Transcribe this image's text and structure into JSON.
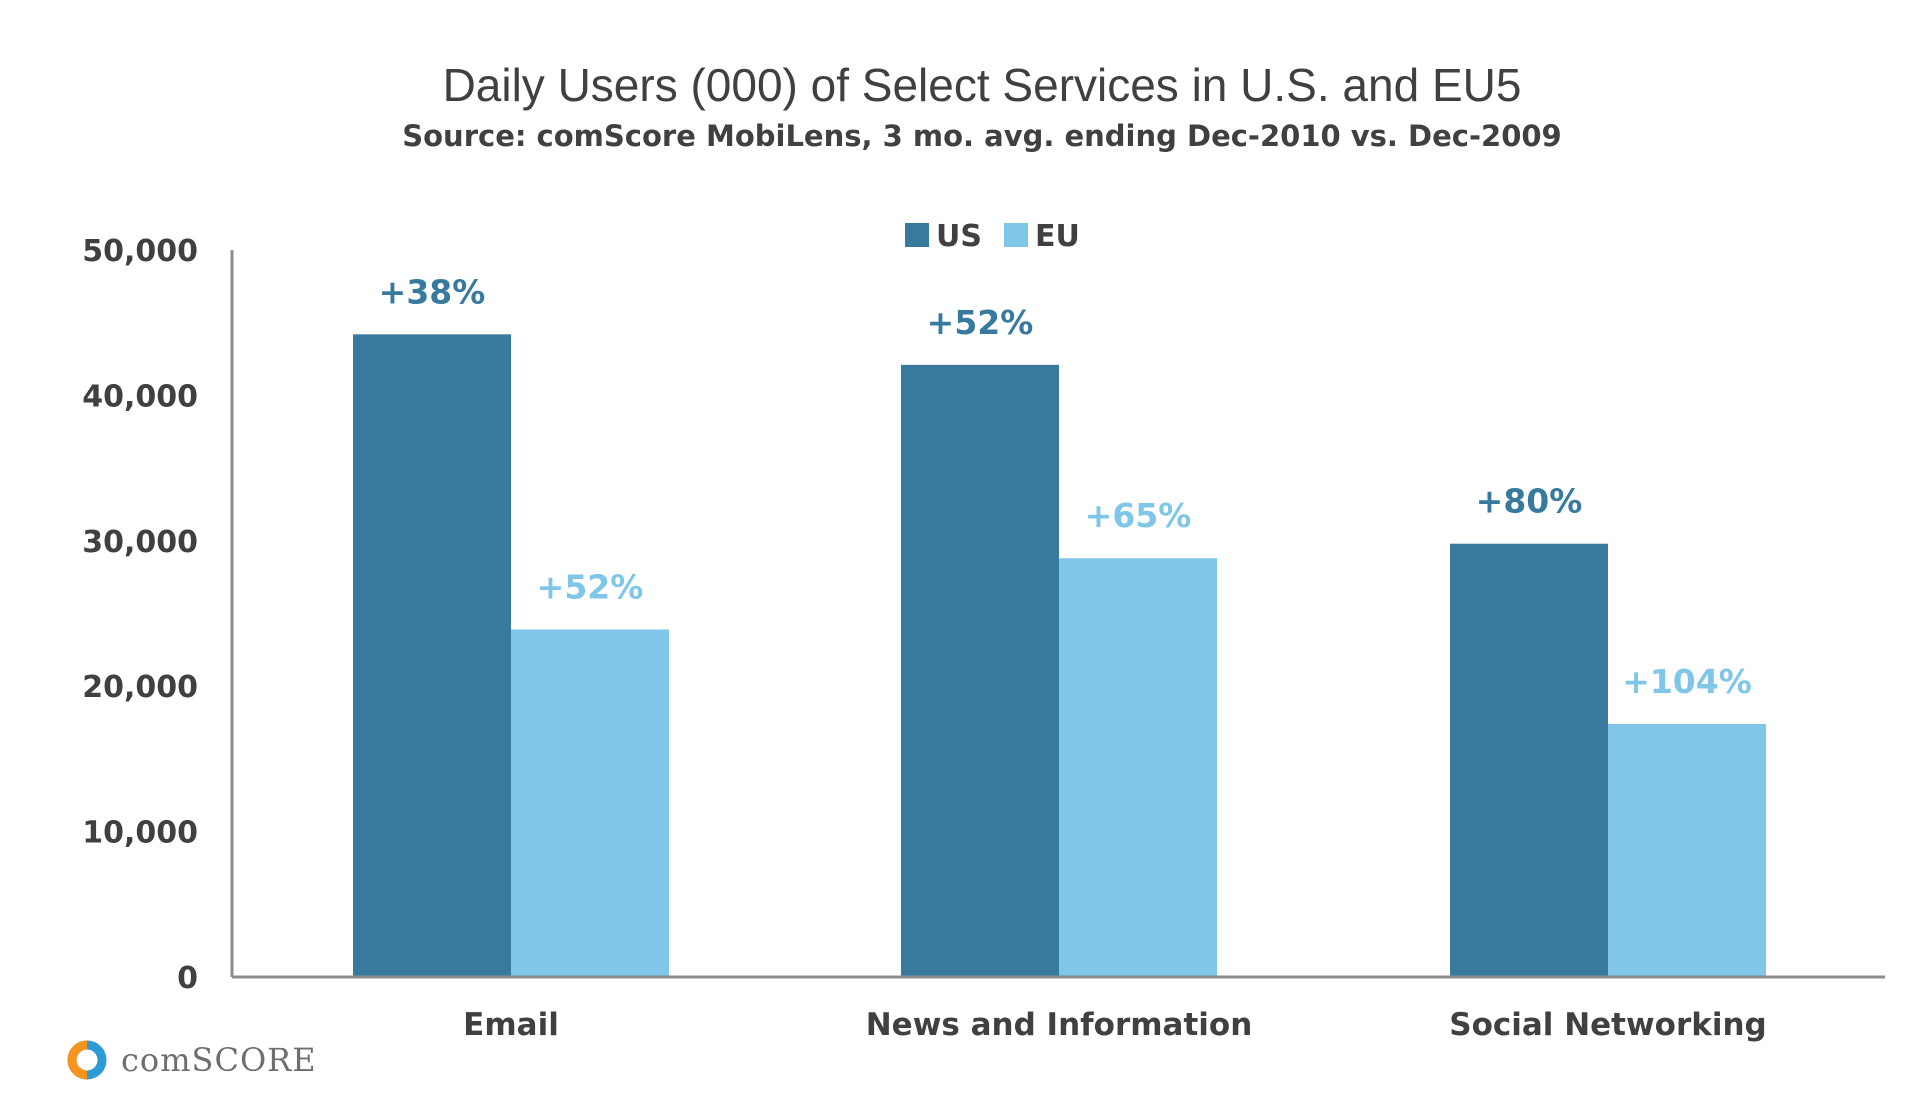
{
  "chart_data": {
    "type": "bar",
    "title": "Daily Users (000) of Select Services in U.S. and EU5",
    "subtitle": "Source: comScore MobiLens, 3 mo. avg. ending Dec-2010 vs. Dec-2009",
    "categories": [
      "Email",
      "News and Information",
      "Social Networking"
    ],
    "series": [
      {
        "name": "US",
        "color": "#377a9e",
        "values": [
          44200,
          42100,
          29800
        ],
        "labels": [
          "+38%",
          "+52%",
          "+80%"
        ]
      },
      {
        "name": "EU",
        "color": "#7fc6e9",
        "values": [
          23900,
          28800,
          17400
        ],
        "labels": [
          "+52%",
          "+65%",
          "+104%"
        ]
      }
    ],
    "ylim": [
      0,
      50000
    ],
    "yticks": [
      0,
      10000,
      20000,
      30000,
      40000,
      50000
    ],
    "ytick_labels": [
      "0",
      "10,000",
      "20,000",
      "30,000",
      "40,000",
      "50,000"
    ],
    "xlabel": "",
    "ylabel": "",
    "grid": false,
    "legend_position": "top-center"
  },
  "branding": {
    "logo_text": "comSCORE",
    "logo_icon": "comscore-logo-icon",
    "logo_colors": [
      "#f7941d",
      "#2e9bd6"
    ]
  }
}
